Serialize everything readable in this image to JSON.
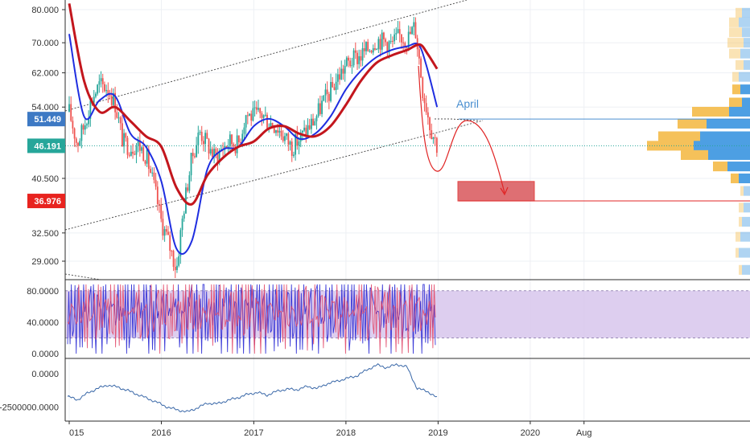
{
  "colors": {
    "background": "#ffffff",
    "grid": "#eef0f4",
    "separator": "#2b2b2b",
    "text": "#333333",
    "candle_up": "#26a69a",
    "candle_down": "#ef5350",
    "ma_fast": "#1f2ee0",
    "ma_slow": "#c3161d",
    "projection": "#e02424",
    "support_line": "#e02424",
    "resistance_line": "#4a8fd0",
    "current_line": "#26a69a",
    "channel": "#555555",
    "target_box": "#d9575b",
    "volume_profile_up": "#f5c15a",
    "volume_profile_down": "#4d9fe3",
    "oscillator_band": "#d7c6ec",
    "oscillator_line_1": "#2828d4",
    "oscillator_line_2": "#e24a6a",
    "cumulative_line": "#3a68a8",
    "badge_resistance": "#3d79c4",
    "badge_current": "#26a69a",
    "badge_support": "#e8231f"
  },
  "chart_data": [
    {
      "type": "candlestick",
      "price_axis_ticks": [
        "80.000",
        "70.000",
        "62.000",
        "54.000",
        "40.500",
        "32.500",
        "29.000"
      ],
      "price_badges": [
        {
          "label": "51.449",
          "value": 51.449,
          "role": "resistance"
        },
        {
          "label": "46.191",
          "value": 46.191,
          "role": "current"
        },
        {
          "label": "36.976",
          "value": 36.976,
          "role": "support"
        }
      ],
      "annotations": [
        {
          "text": "April",
          "x": "2019-04"
        }
      ],
      "ylim": [
        26.0,
        82.5
      ],
      "x_range": [
        "2014-12-20",
        "2021-01-01"
      ],
      "price_path": {
        "dates": [
          "2015-01-01",
          "2015-02-01",
          "2015-03-01",
          "2015-04-01",
          "2015-05-01",
          "2015-06-01",
          "2015-07-01",
          "2015-08-01",
          "2015-09-01",
          "2015-10-01",
          "2015-11-01",
          "2015-12-01",
          "2016-01-01",
          "2016-02-01",
          "2016-03-01",
          "2016-04-01",
          "2016-05-01",
          "2016-06-01",
          "2016-07-01",
          "2016-08-01",
          "2016-09-01",
          "2016-10-01",
          "2016-11-01",
          "2016-12-01",
          "2017-01-01",
          "2017-02-01",
          "2017-03-01",
          "2017-04-01",
          "2017-05-01",
          "2017-06-01",
          "2017-07-01",
          "2017-08-01",
          "2017-09-01",
          "2017-10-01",
          "2017-11-01",
          "2017-12-01",
          "2018-01-01",
          "2018-02-01",
          "2018-03-01",
          "2018-04-01",
          "2018-05-01",
          "2018-06-01",
          "2018-07-01",
          "2018-08-01",
          "2018-09-01",
          "2018-10-01",
          "2018-11-01",
          "2018-12-01",
          "2018-12-28"
        ],
        "close": [
          53.0,
          46.5,
          50.0,
          56.0,
          59.0,
          58.5,
          55.0,
          47.0,
          46.0,
          46.5,
          44.5,
          39.5,
          34.0,
          31.0,
          28.0,
          36.5,
          44.0,
          49.0,
          46.5,
          44.0,
          46.0,
          47.0,
          46.5,
          52.5,
          52.0,
          52.5,
          51.0,
          50.0,
          48.0,
          46.0,
          47.5,
          49.5,
          51.5,
          55.0,
          57.5,
          61.0,
          64.0,
          65.5,
          66.5,
          68.5,
          71.0,
          70.5,
          69.5,
          72.0,
          71.0,
          75.0,
          58.0,
          50.0,
          46.19
        ]
      },
      "moving_averages": [
        {
          "dates": [
            "2015-01-01",
            "2015-03-01",
            "2015-05-01",
            "2015-07-01",
            "2015-09-01",
            "2015-11-01",
            "2016-01-01",
            "2016-03-01",
            "2016-05-01",
            "2016-07-01",
            "2016-09-01",
            "2016-11-01",
            "2017-01-01",
            "2017-03-01",
            "2017-05-01",
            "2017-07-01",
            "2017-09-01",
            "2017-11-01",
            "2018-01-01",
            "2018-03-01",
            "2018-05-01",
            "2018-07-01",
            "2018-09-01",
            "2018-10-15",
            "2018-11-15",
            "2018-12-28"
          ],
          "values": [
            72.5,
            52.0,
            55.5,
            56.5,
            48.5,
            46.0,
            40.0,
            30.5,
            31.5,
            42.0,
            45.5,
            46.0,
            50.0,
            51.5,
            50.0,
            47.5,
            48.5,
            52.0,
            58.0,
            62.5,
            66.0,
            68.0,
            69.0,
            69.5,
            64.0,
            54.0
          ]
        },
        {
          "dates": [
            "2015-01-01",
            "2015-03-01",
            "2015-05-01",
            "2015-07-01",
            "2015-09-01",
            "2015-11-01",
            "2016-01-01",
            "2016-03-01",
            "2016-05-01",
            "2016-07-01",
            "2016-09-01",
            "2016-11-01",
            "2017-01-01",
            "2017-03-01",
            "2017-05-01",
            "2017-07-01",
            "2017-09-01",
            "2017-11-01",
            "2018-01-01",
            "2018-03-01",
            "2018-05-01",
            "2018-07-01",
            "2018-09-01",
            "2018-10-20",
            "2018-11-20",
            "2018-12-28"
          ],
          "values": [
            82.0,
            60.0,
            53.0,
            54.0,
            51.0,
            48.0,
            46.0,
            39.0,
            36.5,
            41.0,
            44.0,
            46.0,
            47.0,
            49.5,
            50.0,
            48.5,
            48.0,
            50.0,
            54.5,
            60.0,
            64.5,
            66.5,
            68.0,
            69.5,
            67.0,
            63.0
          ]
        }
      ]
    },
    {
      "type": "line",
      "y_axis_ticks": [
        "80.0000",
        "40.0000",
        "0.0000"
      ],
      "ylim": [
        -4,
        92
      ],
      "band": [
        20,
        80
      ],
      "series": [
        {
          "values": [
            45,
            70,
            30,
            82,
            25,
            60,
            75,
            10,
            55,
            85,
            35,
            65,
            20,
            78,
            50,
            88,
            15,
            62,
            40,
            80,
            28,
            70,
            52,
            8,
            66,
            90,
            38,
            58,
            22,
            74,
            48,
            84,
            12,
            68,
            44,
            79,
            30,
            60,
            86,
            18,
            55,
            72,
            36,
            81,
            26,
            64,
            50,
            89,
            14,
            70
          ]
        },
        {
          "values": [
            40,
            65,
            35,
            75,
            30,
            55,
            70,
            20,
            50,
            78,
            40,
            60,
            28,
            72,
            48,
            80,
            25,
            58,
            45,
            74,
            35,
            66,
            50,
            18,
            62,
            82,
            42,
            55,
            30,
            70,
            46,
            78,
            22,
            64,
            46,
            74,
            34,
            58,
            80,
            26,
            52,
            68,
            40,
            76,
            32,
            60,
            48,
            82,
            24,
            66
          ]
        }
      ]
    },
    {
      "type": "line",
      "y_axis_ticks": [
        "0.0000",
        "-2500000.0000"
      ],
      "ylim": [
        -3300000,
        900000
      ],
      "series": [
        {
          "values": [
            -1700000,
            -1950000,
            -1450000,
            -1100000,
            -850000,
            -1000000,
            -1250000,
            -1550000,
            -1850000,
            -2150000,
            -2500000,
            -2700000,
            -2850000,
            -2550000,
            -2200000,
            -2250000,
            -2000000,
            -1800000,
            -1550000,
            -1400000,
            -1600000,
            -1300000,
            -1150000,
            -1200000,
            -950000,
            -1100000,
            -750000,
            -550000,
            -350000,
            -150000,
            300000,
            650000,
            450000,
            700000,
            500000,
            -1100000,
            -1300000,
            -1800000
          ]
        }
      ]
    }
  ],
  "x_axis_labels": [
    {
      "label": "015",
      "date": "2015-01-01"
    },
    {
      "label": "2016",
      "date": "2016-01-01"
    },
    {
      "label": "2017",
      "date": "2017-01-01"
    },
    {
      "label": "2018",
      "date": "2018-01-01"
    },
    {
      "label": "2019",
      "date": "2019-01-01"
    },
    {
      "label": "2020",
      "date": "2020-01-01"
    },
    {
      "label": "Aug",
      "date": "2020-08-01"
    }
  ]
}
